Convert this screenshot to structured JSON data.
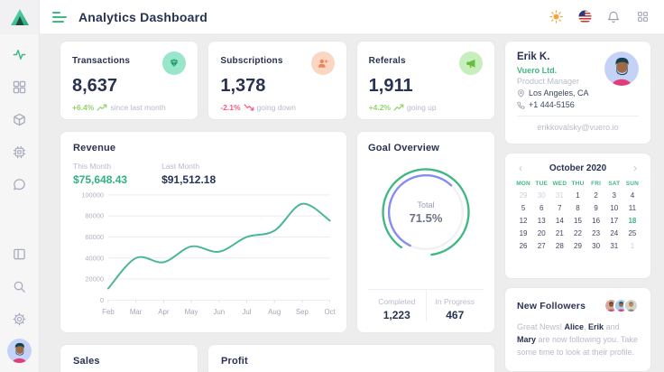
{
  "app": {
    "title": "Analytics Dashboard"
  },
  "header": {
    "icons": [
      "sun-theme-toggle",
      "us-flag-language",
      "bell-notifications",
      "apps-grid"
    ]
  },
  "sidebar": {
    "icons": [
      "activity",
      "dashboard-grid",
      "cube",
      "cpu",
      "chat-bubble",
      "panels",
      "search",
      "settings-gear",
      "user-avatar"
    ],
    "active": "activity"
  },
  "stats": [
    {
      "label": "Transactions",
      "value": "8,637",
      "trend": "+6.4%",
      "note": "since last month",
      "direction": "up",
      "icon": "gem-icon"
    },
    {
      "label": "Subscriptions",
      "value": "1,378",
      "trend": "-2.1%",
      "note": "going down",
      "direction": "down",
      "icon": "user-plus-icon"
    },
    {
      "label": "Referals",
      "value": "1,911",
      "trend": "+4.2%",
      "note": "going up",
      "direction": "up",
      "icon": "megaphone-icon"
    }
  ],
  "revenue": {
    "title": "Revenue",
    "this_month_label": "This Month",
    "this_month_value": "$75,648.43",
    "last_month_label": "Last Month",
    "last_month_value": "$91,512.18"
  },
  "goal": {
    "title": "Goal Overview"
  },
  "chart_data": [
    {
      "type": "line",
      "title": "Revenue",
      "x": [
        "Feb",
        "Mar",
        "Apr",
        "May",
        "Jun",
        "Jul",
        "Aug",
        "Sep",
        "Oct"
      ],
      "series": [
        {
          "name": "Revenue",
          "values": [
            11000,
            40000,
            36000,
            51000,
            46000,
            60000,
            66000,
            91512,
            75648
          ]
        }
      ],
      "ylim": [
        0,
        100000
      ],
      "yticks": [
        0,
        20000,
        40000,
        60000,
        80000,
        100000
      ],
      "grid": true,
      "legend": false,
      "color": "#4bb59b"
    },
    {
      "type": "radial",
      "title": "Goal Overview",
      "center_label": "Total",
      "center_value": "71.5%",
      "series": [
        {
          "name": "Completed",
          "value": 1223,
          "display": "1,223",
          "arc_pct": 88,
          "color": "#41b883",
          "radius": 50,
          "rotate": 125,
          "track": false
        },
        {
          "name": "In Progress",
          "value": 467,
          "display": "467",
          "arc_pct": 55,
          "color": "#868cf0",
          "radius": 43,
          "rotate": 115,
          "track": true
        }
      ]
    }
  ],
  "profile": {
    "name": "Erik K.",
    "company": "Vuero Ltd.",
    "role": "Product Manager",
    "location": "Los Angeles, CA",
    "phone": "+1 444-5156",
    "email": "erikkovalsky@vuero.io"
  },
  "calendar": {
    "month": "October 2020",
    "day_headers": [
      "MON",
      "TUE",
      "WED",
      "THU",
      "FRI",
      "SAT",
      "SUN"
    ],
    "days": [
      {
        "d": 29,
        "muted": true
      },
      {
        "d": 30,
        "muted": true
      },
      {
        "d": 31,
        "muted": true
      },
      {
        "d": 1
      },
      {
        "d": 2
      },
      {
        "d": 3
      },
      {
        "d": 4
      },
      {
        "d": 5
      },
      {
        "d": 6
      },
      {
        "d": 7
      },
      {
        "d": 8
      },
      {
        "d": 9
      },
      {
        "d": 10
      },
      {
        "d": 11
      },
      {
        "d": 12
      },
      {
        "d": 13
      },
      {
        "d": 14
      },
      {
        "d": 15
      },
      {
        "d": 16
      },
      {
        "d": 17
      },
      {
        "d": 18,
        "selected": true
      },
      {
        "d": 19
      },
      {
        "d": 20
      },
      {
        "d": 21
      },
      {
        "d": 22
      },
      {
        "d": 23
      },
      {
        "d": 24
      },
      {
        "d": 25
      },
      {
        "d": 26
      },
      {
        "d": 27
      },
      {
        "d": 28
      },
      {
        "d": 29
      },
      {
        "d": 30
      },
      {
        "d": 31
      },
      {
        "d": 1,
        "muted": true
      }
    ]
  },
  "followers": {
    "title": "New Followers",
    "text_parts": [
      {
        "t": "Great News! "
      },
      {
        "t": "Alice",
        "b": true
      },
      {
        "t": ", "
      },
      {
        "t": "Erik",
        "b": true
      },
      {
        "t": " and "
      },
      {
        "t": "Mary",
        "b": true
      },
      {
        "t": " are now following you. Take some time to look at their profile."
      }
    ]
  },
  "bottom": {
    "sales_title": "Sales",
    "profit_title": "Profit"
  },
  "colors": {
    "accent_green": "#41b883",
    "line_teal": "#4bb59b",
    "arc_purple": "#868cf0",
    "trend_up": "#92d36e",
    "trend_down": "#f25d7f",
    "navy_text": "#283252",
    "muted_text": "#b8bcca"
  }
}
